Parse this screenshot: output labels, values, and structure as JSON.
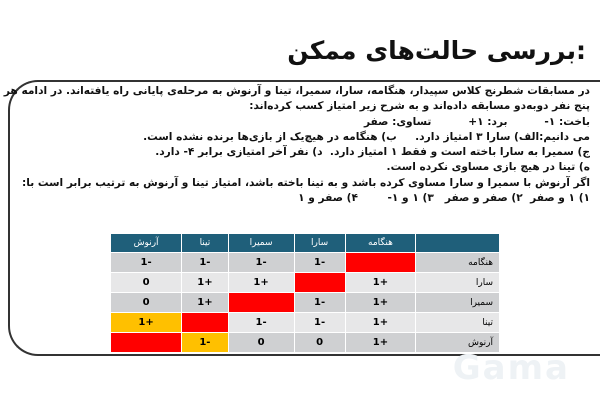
{
  "title": ":بررسی حالت‌های ممکن",
  "paragraph": [
    "در مسابقات شطرنج کلاس سپیدار، هنگامه، سارا، سمیرا، تینا و آرنوش به مرحله‌ی پایانی راه یافته‌اند. در ادامه هر",
    "پنج نفر دوبه‌دو مسابقه داده‌اند و به شرح زیر امتیاز کسب کرده‌اند:",
    "باخت: ۱-          برد: ۱+          تساوی: صفر",
    "می دانیم:الف) سارا ۳ امتیاز دارد.     ب) هنگامه در هیچ‌یک از بازی‌ها برنده نشده است.",
    "ج) سمیرا به سارا باخته است و فقط ۱ امتیاز دارد.  د) نفر آخر امتیازی برابر ۴- دارد.",
    "ه) تینا در هیچ بازی مساوی نکرده است.",
    "اگر آرنوش با سمیرا و سارا مساوی کرده باشد و به تینا باخته باشد، امتیاز تینا و آرنوش به ترتیب برابر است با:",
    "۱) ۱ و صفر  ۲) صفر و صفر   ۳) ۱ و ۱-        ۴) صفر و ۱"
  ],
  "table": {
    "headers": [
      "",
      "هنگامه",
      "سارا",
      "سمیرا",
      "تینا",
      "آرنوش"
    ],
    "rows": [
      {
        "name": "هنگامه",
        "cells": [
          "",
          "1-",
          "1-",
          "1-",
          "1-"
        ]
      },
      {
        "name": "سارا",
        "cells": [
          "1+",
          "",
          "1+",
          "1+",
          "0"
        ]
      },
      {
        "name": "سمیرا",
        "cells": [
          "1+",
          "1-",
          "",
          "1+",
          "0"
        ]
      },
      {
        "name": "تینا",
        "cells": [
          "1+",
          "1-",
          "1-",
          "",
          "1+"
        ]
      },
      {
        "name": "آرنوش",
        "cells": [
          "1+",
          "0",
          "0",
          "1-",
          ""
        ]
      }
    ],
    "colors": {
      "header": "#1f5f7a",
      "diagonal": "#ff0000",
      "highlight": "#ffc000"
    }
  },
  "watermark": "Gama"
}
